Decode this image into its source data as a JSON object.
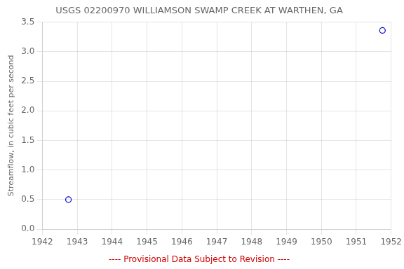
{
  "chart_data": {
    "type": "scatter",
    "title": "USGS 02200970 WILLIAMSON SWAMP CREEK AT WARTHEN, GA",
    "ylabel": "Streamflow, in cubic feet per second",
    "x": [
      1942.75,
      1951.75
    ],
    "values": [
      0.5,
      3.36
    ],
    "color": "#0000cc",
    "marker": "circle",
    "xlim": [
      1942,
      1952
    ],
    "ylim": [
      0,
      3.5
    ],
    "xticks": [
      1942,
      1943,
      1944,
      1945,
      1946,
      1947,
      1948,
      1949,
      1950,
      1951,
      1952
    ],
    "yticks": [
      {
        "value": 0,
        "label": "0.0"
      },
      0.5,
      {
        "value": 1,
        "label": "1.0"
      },
      1.5,
      {
        "value": 2,
        "label": "2.0"
      },
      2.5,
      {
        "value": 3,
        "label": "3.0"
      },
      3.5
    ],
    "grid": true,
    "annotations": [
      {
        "text": "---- Provisional Data Subject to Revision ----",
        "color": "#cc0000"
      }
    ]
  }
}
